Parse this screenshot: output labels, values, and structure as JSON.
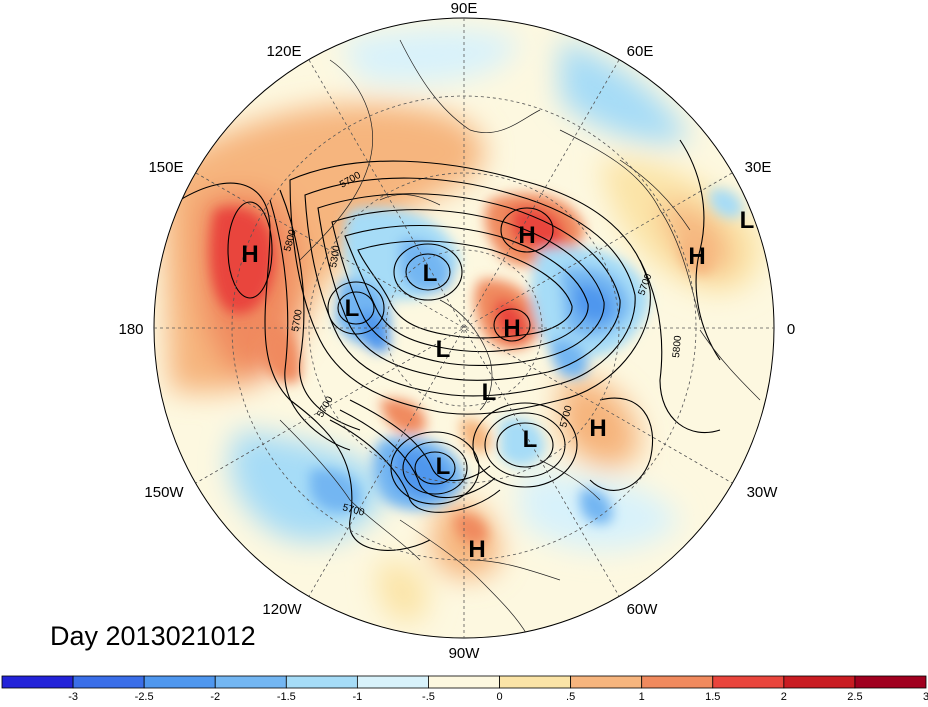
{
  "map": {
    "projection": "north-polar-stereographic",
    "day_label": "Day 2013021012",
    "longitude_labels": [
      {
        "id": "lon-90e",
        "text": "90E"
      },
      {
        "id": "lon-60e",
        "text": "60E"
      },
      {
        "id": "lon-120e",
        "text": "120E"
      },
      {
        "id": "lon-30e",
        "text": "30E"
      },
      {
        "id": "lon-150e",
        "text": "150E"
      },
      {
        "id": "lon-0",
        "text": "0"
      },
      {
        "id": "lon-180",
        "text": "180"
      },
      {
        "id": "lon-150w",
        "text": "150W"
      },
      {
        "id": "lon-30w",
        "text": "30W"
      },
      {
        "id": "lon-120w",
        "text": "120W"
      },
      {
        "id": "lon-60w",
        "text": "60W"
      },
      {
        "id": "lon-90w",
        "text": "90W"
      }
    ],
    "pressure_centers": [
      {
        "type": "H"
      },
      {
        "type": "H"
      },
      {
        "type": "H"
      },
      {
        "type": "H"
      },
      {
        "type": "H"
      },
      {
        "type": "H"
      },
      {
        "type": "L"
      },
      {
        "type": "L"
      },
      {
        "type": "L"
      },
      {
        "type": "L"
      },
      {
        "type": "L"
      },
      {
        "type": "L"
      },
      {
        "type": "L"
      }
    ],
    "contour_labels": [
      "5700",
      "5800",
      "5300",
      "5700",
      "5700",
      "5700",
      "5800",
      "5700",
      "5700"
    ]
  },
  "colorbar": {
    "ticks": [
      "-3",
      "-2.5",
      "-2",
      "-1.5",
      "-1",
      "-.5",
      "0",
      ".5",
      "1",
      "1.5",
      "2",
      "2.5",
      "3"
    ],
    "colors": [
      "#2323d8",
      "#3a6ee8",
      "#4f97ee",
      "#73b6f2",
      "#a6dcf7",
      "#d8f2fb",
      "#fdf8e0",
      "#fbe4a7",
      "#f6b57e",
      "#f08a5e",
      "#e9453c",
      "#c91c22",
      "#a0001f"
    ]
  }
}
